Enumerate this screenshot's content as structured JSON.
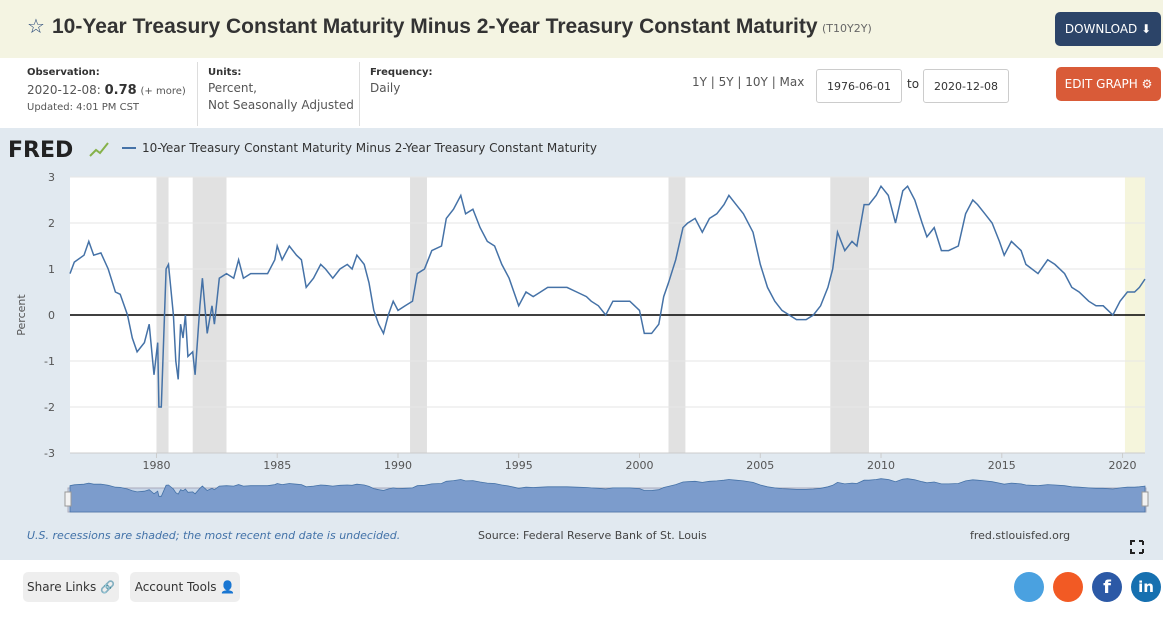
{
  "header": {
    "title": "10-Year Treasury Constant Maturity Minus 2-Year Treasury Constant Maturity",
    "series_id": "(T10Y2Y)",
    "download": "DOWNLOAD"
  },
  "info": {
    "observation_label": "Observation:",
    "observation_date": "2020-12-08:",
    "observation_value": 0.78,
    "observation_more": "(+ more)",
    "updated": "Updated: 4:01 PM CST",
    "units_label": "Units:",
    "units_line1": "Percent,",
    "units_line2": "Not Seasonally Adjusted",
    "frequency_label": "Frequency:",
    "frequency": "Daily",
    "ranges": "1Y | 5Y | 10Y | Max",
    "start_date": "1976-06-01",
    "to": "to",
    "end_date": "2020-12-08",
    "edit_graph": "EDIT GRAPH"
  },
  "chart_data": {
    "type": "line",
    "logo": "FRED",
    "ylabel": "Percent",
    "series": [
      {
        "name": "10-Year Treasury Constant Maturity Minus 2-Year Treasury Constant Maturity",
        "color": "#4572a7",
        "x": [
          1976.42,
          1976.6,
          1977.0,
          1977.2,
          1977.4,
          1977.7,
          1978.0,
          1978.3,
          1978.5,
          1978.8,
          1979.0,
          1979.2,
          1979.5,
          1979.7,
          1979.9,
          1980.05,
          1980.1,
          1980.2,
          1980.4,
          1980.5,
          1980.7,
          1980.8,
          1980.9,
          1981.0,
          1981.1,
          1981.2,
          1981.3,
          1981.5,
          1981.6,
          1981.8,
          1981.9,
          1982.1,
          1982.3,
          1982.4,
          1982.6,
          1982.9,
          1983.2,
          1983.4,
          1983.6,
          1983.9,
          1984.2,
          1984.6,
          1984.9,
          1985.0,
          1985.2,
          1985.5,
          1985.8,
          1986.0,
          1986.2,
          1986.5,
          1986.8,
          1987.0,
          1987.3,
          1987.6,
          1987.9,
          1988.1,
          1988.3,
          1988.6,
          1988.8,
          1989.0,
          1989.2,
          1989.4,
          1989.6,
          1989.8,
          1990.0,
          1990.3,
          1990.6,
          1990.8,
          1991.1,
          1991.4,
          1991.8,
          1992.0,
          1992.3,
          1992.6,
          1992.8,
          1993.1,
          1993.4,
          1993.7,
          1994.0,
          1994.3,
          1994.6,
          1994.8,
          1995.0,
          1995.3,
          1995.6,
          1995.9,
          1996.2,
          1996.6,
          1997.0,
          1997.4,
          1997.8,
          1998.0,
          1998.3,
          1998.6,
          1998.9,
          1999.2,
          1999.6,
          2000.0,
          2000.2,
          2000.5,
          2000.8,
          2001.0,
          2001.2,
          2001.5,
          2001.8,
          2002.0,
          2002.3,
          2002.6,
          2002.9,
          2003.2,
          2003.5,
          2003.7,
          2004.0,
          2004.3,
          2004.7,
          2005.0,
          2005.3,
          2005.6,
          2005.9,
          2006.2,
          2006.5,
          2006.9,
          2007.2,
          2007.5,
          2007.8,
          2008.0,
          2008.2,
          2008.5,
          2008.8,
          2009.0,
          2009.3,
          2009.5,
          2009.8,
          2010.0,
          2010.3,
          2010.6,
          2010.9,
          2011.1,
          2011.4,
          2011.7,
          2011.9,
          2012.2,
          2012.5,
          2012.8,
          2013.2,
          2013.5,
          2013.8,
          2014.0,
          2014.3,
          2014.6,
          2014.9,
          2015.1,
          2015.4,
          2015.8,
          2016.0,
          2016.5,
          2016.9,
          2017.2,
          2017.6,
          2017.9,
          2018.2,
          2018.6,
          2018.9,
          2019.2,
          2019.6,
          2019.9,
          2020.2,
          2020.5,
          2020.7,
          2020.93
        ],
        "values": [
          0.9,
          1.15,
          1.3,
          1.6,
          1.3,
          1.35,
          1.0,
          0.5,
          0.45,
          0.0,
          -0.5,
          -0.8,
          -0.6,
          -0.2,
          -1.3,
          -0.6,
          -2.0,
          -2.0,
          1.0,
          1.1,
          0.0,
          -1.0,
          -1.4,
          -0.2,
          -0.5,
          0.0,
          -0.9,
          -0.8,
          -1.3,
          0.2,
          0.8,
          -0.4,
          0.2,
          -0.2,
          0.8,
          0.9,
          0.8,
          1.2,
          0.8,
          0.9,
          0.9,
          0.9,
          1.2,
          1.5,
          1.2,
          1.5,
          1.3,
          1.2,
          0.6,
          0.8,
          1.1,
          1.0,
          0.8,
          1.0,
          1.1,
          1.0,
          1.3,
          1.1,
          0.7,
          0.1,
          -0.2,
          -0.4,
          0.0,
          0.3,
          0.1,
          0.2,
          0.3,
          0.9,
          1.0,
          1.4,
          1.5,
          2.1,
          2.3,
          2.6,
          2.2,
          2.3,
          1.9,
          1.6,
          1.5,
          1.1,
          0.8,
          0.5,
          0.2,
          0.5,
          0.4,
          0.5,
          0.6,
          0.6,
          0.6,
          0.5,
          0.4,
          0.3,
          0.2,
          0.0,
          0.3,
          0.3,
          0.3,
          0.1,
          -0.4,
          -0.4,
          -0.2,
          0.4,
          0.7,
          1.2,
          1.9,
          2.0,
          2.1,
          1.8,
          2.1,
          2.2,
          2.4,
          2.6,
          2.4,
          2.2,
          1.8,
          1.1,
          0.6,
          0.3,
          0.1,
          0.0,
          -0.1,
          -0.1,
          0.0,
          0.2,
          0.6,
          1.0,
          1.8,
          1.4,
          1.6,
          1.5,
          2.4,
          2.4,
          2.6,
          2.8,
          2.6,
          2.0,
          2.7,
          2.8,
          2.5,
          2.0,
          1.7,
          1.9,
          1.4,
          1.4,
          1.5,
          2.2,
          2.5,
          2.4,
          2.2,
          2.0,
          1.6,
          1.3,
          1.6,
          1.4,
          1.1,
          0.9,
          1.2,
          1.1,
          0.9,
          0.6,
          0.5,
          0.3,
          0.2,
          0.2,
          0.0,
          0.3,
          0.5,
          0.5,
          0.6,
          0.78
        ]
      }
    ],
    "recessions": [
      [
        1980.0,
        1980.5
      ],
      [
        1981.5,
        1982.9
      ],
      [
        1990.5,
        1991.2
      ],
      [
        2001.2,
        2001.9
      ],
      [
        2007.9,
        2009.5
      ]
    ],
    "recent_recession": [
      2020.1,
      2020.93
    ],
    "xlim": [
      1976.42,
      2020.93
    ],
    "xticks": [
      1980,
      1985,
      1990,
      1995,
      2000,
      2005,
      2010,
      2015,
      2020
    ],
    "ylim": [
      -3,
      3
    ],
    "yticks": [
      -3,
      -2,
      -1,
      0,
      1,
      2,
      3
    ],
    "grid": true
  },
  "footer": {
    "note": "U.S. recessions are shaded; the most recent end date is undecided.",
    "source": "Source: Federal Reserve Bank of St. Louis",
    "url": "fred.stlouisfed.org"
  },
  "bottom": {
    "share": "Share Links",
    "account": "Account Tools",
    "facebook": "f",
    "linkedin": "in"
  }
}
